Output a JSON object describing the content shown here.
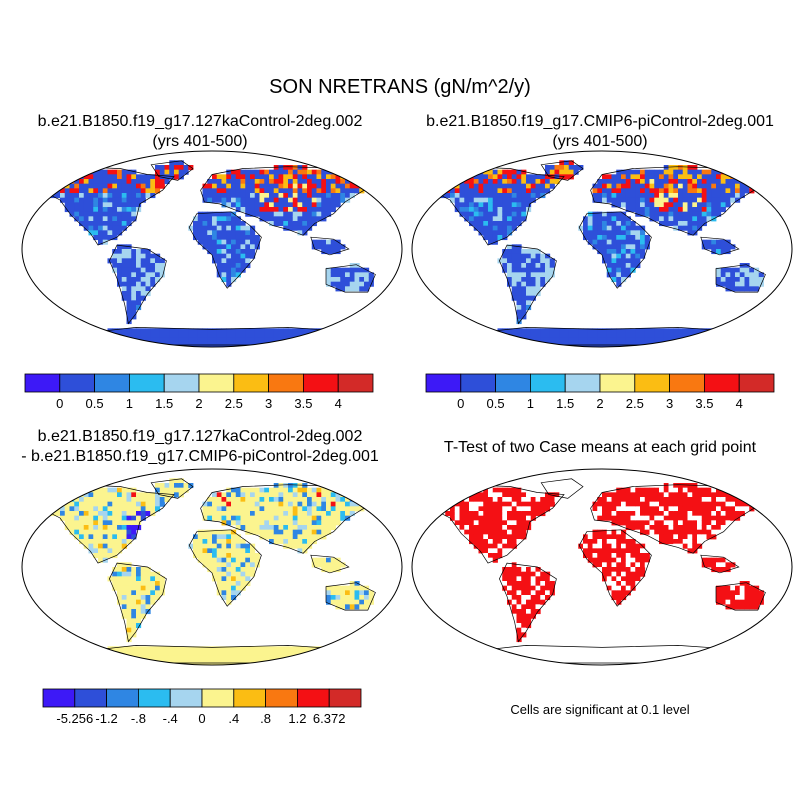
{
  "title": "SON NRETRANS (gN/m^2/y)",
  "panels": {
    "top_left": {
      "title_line1": "b.e21.B1850.f19_g17.127kaControl-2deg.002",
      "title_line2": "(yrs 401-500)"
    },
    "top_right": {
      "title_line1": "b.e21.B1850.f19_g17.CMIP6-piControl-2deg.001",
      "title_line2": "(yrs 401-500)"
    },
    "bottom_left": {
      "title_line1": "b.e21.B1850.f19_g17.127kaControl-2deg.002",
      "title_line2": "- b.e21.B1850.f19_g17.CMIP6-piControl-2deg.001"
    },
    "bottom_right": {
      "title": "T-Test of two Case means at each grid point",
      "note": "Cells are significant at 0.1 level"
    }
  },
  "colorbars": {
    "case": {
      "colors": [
        "#3d19f7",
        "#2e4fd9",
        "#2f86e3",
        "#2bbcf0",
        "#a6d5ef",
        "#fbf48f",
        "#fbbd13",
        "#f97811",
        "#f41014",
        "#d32a28"
      ],
      "labels": [
        "0",
        "0.5",
        "1",
        "1.5",
        "2",
        "2.5",
        "3",
        "3.5",
        "4"
      ]
    },
    "diff": {
      "colors": [
        "#3d19f7",
        "#2e4fd9",
        "#2f86e3",
        "#2bbcf0",
        "#a6d5ef",
        "#fbf48f",
        "#fbbd13",
        "#f97811",
        "#f41014",
        "#d32a28"
      ],
      "labels": [
        "-5.256",
        "-1.2",
        "-.8",
        "-.4",
        "0",
        ".4",
        ".8",
        "1.2",
        "6.372"
      ]
    }
  },
  "map_colors": {
    "ocean": "#ffffff",
    "case_land_base": "#2e4fd9",
    "diff_land_base": "#fbf48f",
    "ttest_land_base": "#ffffff",
    "significant": "#f41014"
  }
}
